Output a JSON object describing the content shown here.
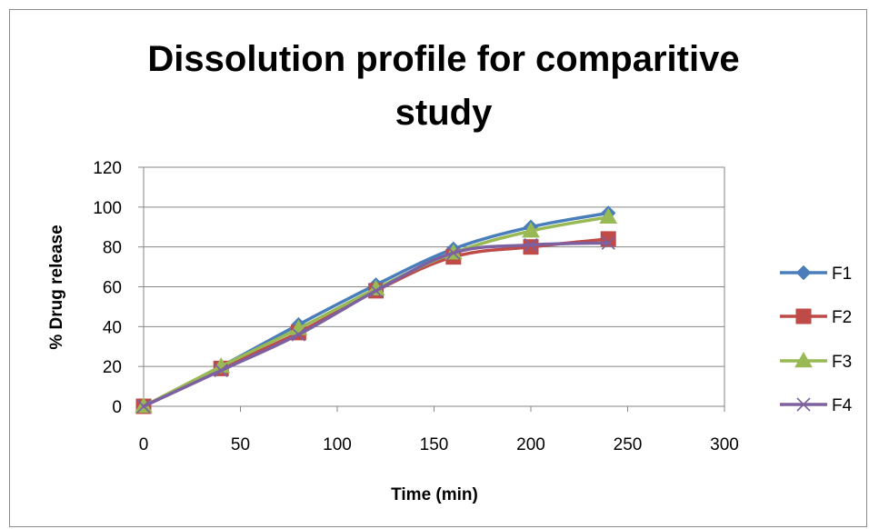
{
  "chart_data": {
    "type": "line",
    "title_lines": [
      "Dissolution profile for comparitive",
      "study"
    ],
    "xlabel": "Time (min)",
    "ylabel": "% Drug release",
    "xlim": [
      0,
      300
    ],
    "ylim": [
      0,
      120
    ],
    "x_ticks": [
      0,
      50,
      100,
      150,
      200,
      250,
      300
    ],
    "y_ticks": [
      0,
      20,
      40,
      60,
      80,
      100,
      120
    ],
    "grid": "horizontal",
    "legend_position": "right",
    "x": [
      0,
      40,
      80,
      120,
      160,
      200,
      240
    ],
    "series": [
      {
        "name": "F1",
        "color": "#4a7ebb",
        "marker": "diamond",
        "values": [
          0,
          20,
          41,
          61,
          79,
          90,
          97
        ]
      },
      {
        "name": "F2",
        "color": "#be4b48",
        "marker": "square",
        "values": [
          0,
          19,
          37,
          58,
          75,
          80,
          84
        ]
      },
      {
        "name": "F3",
        "color": "#98b954",
        "marker": "triangle",
        "values": [
          0,
          20,
          39,
          59,
          77,
          88,
          95
        ]
      },
      {
        "name": "F4",
        "color": "#7d60a0",
        "marker": "x",
        "values": [
          0,
          18,
          36,
          58,
          77,
          81,
          82
        ]
      }
    ]
  }
}
